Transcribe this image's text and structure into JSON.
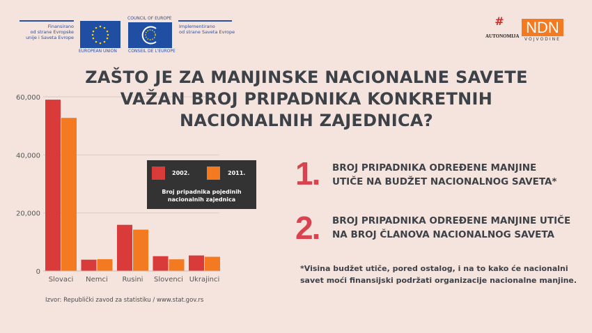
{
  "header": {
    "funded_text": [
      "Finansirano",
      "od strane Evropske",
      "unije i Saveta Evrope"
    ],
    "eu_label": "EUROPEAN UNION",
    "coe_top": "COUNCIL OF EUROPE",
    "coe_bottom": "CONSEIL DE L'EUROPE",
    "implemented_text": [
      "Implementirano",
      "od strane Saveta Evrope"
    ],
    "autonomija_logo": "AUTONOMIJA",
    "ndn_logo": "NDN",
    "ndn_sub": "VOJVODINE"
  },
  "title": [
    "ZAŠTO JE ZA MANJINSKE NACIONALNE SAVETE",
    "VAŽAN BROJ PRIPADNIKA KONKRETNIH",
    "NACIONALNIH ZAJEDNICA?"
  ],
  "points": [
    {
      "number": "1.",
      "lines": [
        "BROJ PRIPADNIKA ODREĐENE MANJINE",
        "UTIČE NA BUDŽET NACIONALNOG SAVETA*"
      ]
    },
    {
      "number": "2.",
      "lines": [
        "BROJ PRIPADNIKA ODREĐENE MANJINE UTIČE",
        "NA BROJ ČLANOVA NACIONALNOG SAVETA"
      ]
    }
  ],
  "note": [
    "*Visina budžet utiče, pored ostalog, i na to kako će nacionalni",
    "savet moći finansijski podržati organizacije nacionalne manjine."
  ],
  "source": "Izvor: Republički zavod za statistiku / www.stat.gov.rs",
  "colors": {
    "accent": "#d9434f",
    "series_2002": "#d93a3a",
    "series_2011": "#f47a22",
    "text": "#3d4148",
    "background": "#f5e4dd"
  },
  "chart_data": {
    "type": "bar",
    "title": "Broj pripadnika pojedinih nacionalnih zajednica",
    "categories": [
      "Slovaci",
      "Nemci",
      "Rusini",
      "Slovenci",
      "Ukrajinci"
    ],
    "series": [
      {
        "name": "2002.",
        "color": "#d93a3a",
        "values": [
          59021,
          3901,
          15905,
          5104,
          5354
        ]
      },
      {
        "name": "2011.",
        "color": "#f47a22",
        "values": [
          52750,
          4064,
          14246,
          4033,
          4903
        ]
      }
    ],
    "yticks": [
      "0",
      "20,000",
      "40,000",
      "60,000"
    ],
    "ytick_values": [
      0,
      20000,
      40000,
      60000
    ],
    "ylim": [
      0,
      60000
    ],
    "grid": true,
    "legend_position": "center-right"
  }
}
